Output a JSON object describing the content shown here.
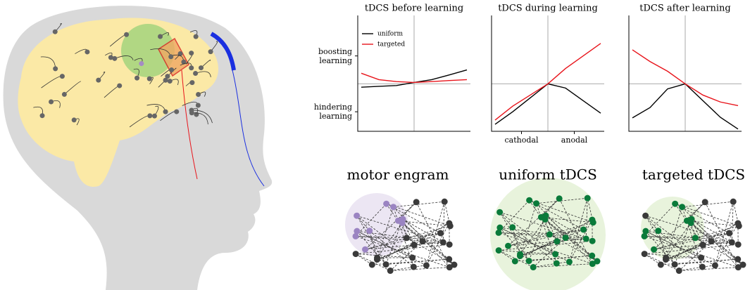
{
  "chart_data": [
    {
      "type": "line",
      "title": "tDCS before learning",
      "legend": "upper left",
      "x": [
        -3,
        -2,
        -1,
        0,
        1,
        2,
        3
      ],
      "xlim": [
        -3.2,
        3.2
      ],
      "ylim": [
        -1.7,
        2.45
      ],
      "yticks": [
        {
          "value": 1,
          "label": "boosting\nlearning"
        },
        {
          "value": -1,
          "label": "hindering\nlearning"
        }
      ],
      "series": [
        {
          "name": "uniform",
          "color": "#000000",
          "values": [
            -0.12,
            -0.09,
            -0.06,
            0.05,
            0.15,
            0.32,
            0.5
          ]
        },
        {
          "name": "targeted",
          "color": "#e8141b",
          "values": [
            0.38,
            0.15,
            0.08,
            0.05,
            0.08,
            0.12,
            0.15
          ]
        }
      ]
    },
    {
      "type": "line",
      "title": "tDCS during learning",
      "x": [
        -3,
        -2,
        -1,
        0,
        1,
        2,
        3
      ],
      "xlim": [
        -3.2,
        3.2
      ],
      "ylim": [
        -1.7,
        2.45
      ],
      "xticks": [
        {
          "value": -1.5,
          "label": "cathodal"
        },
        {
          "value": 1.5,
          "label": "anodal"
        }
      ],
      "series": [
        {
          "name": "uniform",
          "color": "#000000",
          "values": [
            -1.45,
            -1.0,
            -0.5,
            0,
            -0.15,
            -0.6,
            -1.05
          ]
        },
        {
          "name": "targeted",
          "color": "#e8141b",
          "values": [
            -1.3,
            -0.8,
            -0.4,
            0,
            0.55,
            1.0,
            1.45
          ]
        }
      ]
    },
    {
      "type": "line",
      "title": "tDCS after learning",
      "x": [
        -3,
        -2,
        -1,
        0,
        1,
        2,
        3
      ],
      "xlim": [
        -3.2,
        3.2
      ],
      "ylim": [
        -1.7,
        2.45
      ],
      "series": [
        {
          "name": "uniform",
          "color": "#000000",
          "values": [
            -1.22,
            -0.85,
            -0.18,
            0,
            -0.6,
            -1.2,
            -1.62
          ]
        },
        {
          "name": "targeted",
          "color": "#e8141b",
          "values": [
            1.22,
            0.8,
            0.45,
            0,
            -0.4,
            -0.65,
            -0.78
          ]
        }
      ]
    }
  ],
  "panels": [
    "motor engram",
    "uniform tDCS",
    "targeted tDCS"
  ]
}
